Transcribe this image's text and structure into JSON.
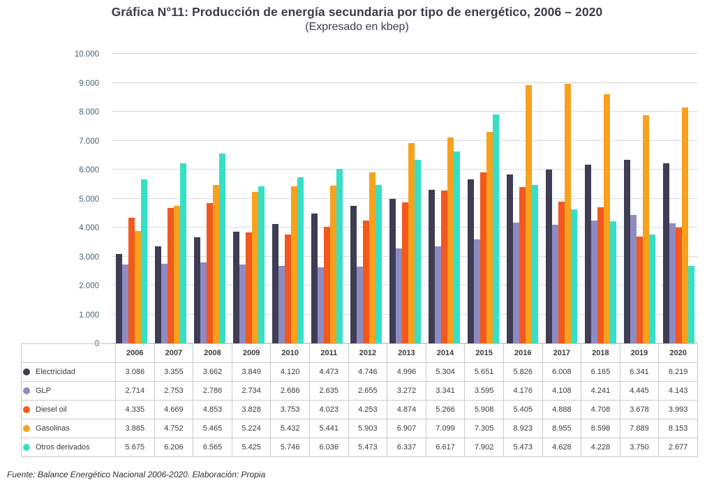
{
  "title": "Gráfica N°11: Producción de energía secundaria por tipo de energético, 2006 – 2020",
  "subtitle": "(Expresado en kbep)",
  "footer": "Fuente: Balance Energético Nacional 2006-2020. Elaboración: Propia",
  "colors": {
    "electricidad": "#3e3d54",
    "glp": "#8f8bc2",
    "diesel_oil": "#f3581d",
    "gasolinas": "#f8a11c",
    "otros_derivados": "#36dfc6",
    "grid": "#dadada",
    "tick_label": "#3f6379",
    "table_border": "#c9c9c9"
  },
  "chart_data": {
    "type": "bar",
    "title": "Gráfica N°11: Producción de energía secundaria por tipo de energético, 2006 – 2020",
    "subtitle": "(Expresado en kbep)",
    "xlabel": "",
    "ylabel": "",
    "ylim": [
      0,
      10000
    ],
    "y_tick_step": 1000,
    "y_tick_labels": [
      "0",
      "1.000",
      "2.000",
      "3.000",
      "4.000",
      "5.000",
      "6.000",
      "7.000",
      "8.000",
      "9.000",
      "10.000"
    ],
    "grid": true,
    "legend_position": "table-left",
    "categories": [
      "2006",
      "2007",
      "2008",
      "2009",
      "2010",
      "2011",
      "2012",
      "2013",
      "2014",
      "2015",
      "2016",
      "2017",
      "2018",
      "2019",
      "2020"
    ],
    "series": [
      {
        "name": "Electricidad",
        "color": "#3e3d54",
        "values": [
          3086,
          3355,
          3662,
          3849,
          4120,
          4473,
          4746,
          4996,
          5304,
          5651,
          5826,
          6008,
          6165,
          6341,
          6219
        ]
      },
      {
        "name": "GLP",
        "color": "#8f8bc2",
        "values": [
          2714,
          2753,
          2786,
          2734,
          2686,
          2635,
          2655,
          3272,
          3341,
          3595,
          4176,
          4108,
          4241,
          4445,
          4143
        ]
      },
      {
        "name": "Diesel oil",
        "color": "#f3581d",
        "values": [
          4335,
          4669,
          4853,
          3828,
          3753,
          4023,
          4253,
          4874,
          5266,
          5908,
          5405,
          4888,
          4708,
          3678,
          3993
        ]
      },
      {
        "name": "Gasolinas",
        "color": "#f8a11c",
        "values": [
          3885,
          4752,
          5465,
          5224,
          5432,
          5441,
          5903,
          6907,
          7099,
          7305,
          8923,
          8955,
          8598,
          7889,
          8153
        ]
      },
      {
        "name": "Otros derivados",
        "color": "#36dfc6",
        "values": [
          5675,
          6206,
          6565,
          5425,
          5746,
          6036,
          5473,
          6337,
          6617,
          7902,
          5473,
          4628,
          4228,
          3750,
          2677
        ]
      }
    ]
  }
}
